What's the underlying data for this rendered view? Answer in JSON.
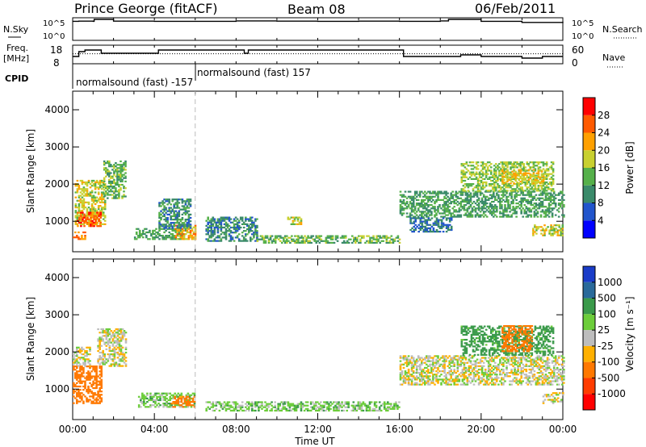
{
  "header": {
    "station": "Prince George (fitACF)",
    "beam": "Beam 08",
    "date": "06/Feb/2011"
  },
  "side_labels": {
    "nsky": "N.Sky",
    "freq": "Freq.",
    "freq_unit": "[MHz]",
    "cpid": "CPID",
    "nsearch": "N.Search",
    "nave": "Nave"
  },
  "cpid_labels": [
    "normalsound (fast) -157",
    "normalsound (fast) 157"
  ],
  "colors": {
    "power_scale": [
      "#0000ff",
      "#2255cc",
      "#3a8a6a",
      "#55b04a",
      "#c8d030",
      "#ffa000",
      "#ff5a00",
      "#ff0000"
    ],
    "velocity_scale": [
      "#1a3cc8",
      "#2a6a9a",
      "#3a9a4a",
      "#6ccd3a",
      "#bdbdbd",
      "#ffb000",
      "#ff7800",
      "#ff3c00",
      "#ff0000"
    ]
  },
  "chart_data": [
    {
      "type": "line",
      "name": "noise-panel",
      "y_left_ticks": [
        "10^5",
        "10^0"
      ],
      "y_right_ticks": [
        "10^5",
        "10^0"
      ],
      "series": [
        {
          "name": "N.Sky",
          "x": [
            0,
            0.3,
            1.0,
            1.05,
            2.0,
            4.0,
            6.0,
            8.0,
            10.0,
            12.0,
            14.0,
            16.0,
            18.0,
            18.4,
            20.0,
            22.0,
            24.0
          ],
          "y": [
            4.5,
            4.55,
            4.5,
            5.0,
            4.55,
            4.5,
            4.5,
            4.6,
            4.55,
            4.5,
            4.55,
            4.5,
            4.6,
            5.0,
            4.5,
            4.2,
            4.4
          ]
        }
      ]
    },
    {
      "type": "line",
      "name": "frequency-panel",
      "y_left_ticks": [
        "18",
        "8"
      ],
      "y_right_ticks": [
        "60",
        "0"
      ],
      "series": [
        {
          "name": "Freq.",
          "x": [
            0,
            0.3,
            0.6,
            1.1,
            1.4,
            2.0,
            3.5,
            4.2,
            5.0,
            6.0,
            7.0,
            8.0,
            8.4,
            8.6,
            9.0,
            10.0,
            12.0,
            14.0,
            16.0,
            16.2,
            18.0,
            19.0,
            20.0,
            21.0,
            22.0,
            23.0,
            24.0
          ],
          "y": [
            12,
            15,
            16,
            16,
            14,
            14,
            14,
            16,
            16,
            16,
            16,
            16,
            14,
            16,
            16,
            16,
            16,
            16,
            16,
            12,
            12,
            13,
            12,
            12,
            11,
            12,
            12
          ]
        },
        {
          "name": "Nave",
          "x": [
            0,
            24
          ],
          "y": [
            34,
            34
          ]
        }
      ]
    },
    {
      "type": "scatter",
      "name": "power-panel",
      "ylabel": "Slant Range [km]",
      "yticks": [
        1000,
        2000,
        3000,
        4000
      ],
      "ylim": [
        180,
        4500
      ],
      "xticks": [
        "00:00",
        "04:00",
        "08:00",
        "12:00",
        "16:00",
        "20:00",
        "00:00"
      ],
      "colorbar": {
        "label": "Power [dB]",
        "ticks": [
          4,
          8,
          12,
          16,
          20,
          24,
          28
        ],
        "range": [
          0,
          32
        ]
      },
      "clusters": [
        {
          "t": [
            0.1,
            1.6
          ],
          "r": [
            900,
            2100
          ],
          "p": 18
        },
        {
          "t": [
            0.2,
            1.4
          ],
          "r": [
            850,
            1250
          ],
          "p": 26
        },
        {
          "t": [
            0.0,
            0.6
          ],
          "r": [
            500,
            700
          ],
          "p": 24
        },
        {
          "t": [
            1.5,
            2.6
          ],
          "r": [
            1600,
            2600
          ],
          "p": 14
        },
        {
          "t": [
            3.0,
            5.5
          ],
          "r": [
            500,
            800
          ],
          "p": 12
        },
        {
          "t": [
            5.0,
            6.0
          ],
          "r": [
            500,
            900
          ],
          "p": 22
        },
        {
          "t": [
            4.2,
            5.8
          ],
          "r": [
            800,
            1600
          ],
          "p": 10
        },
        {
          "t": [
            6.5,
            9.0
          ],
          "r": [
            450,
            1100
          ],
          "p": 10
        },
        {
          "t": [
            9.0,
            16.0
          ],
          "r": [
            400,
            600
          ],
          "p": 14
        },
        {
          "t": [
            10.5,
            11.2
          ],
          "r": [
            900,
            1100
          ],
          "p": 18
        },
        {
          "t": [
            16.0,
            24.0
          ],
          "r": [
            1100,
            1800
          ],
          "p": 12
        },
        {
          "t": [
            19.0,
            23.5
          ],
          "r": [
            1800,
            2600
          ],
          "p": 16
        },
        {
          "t": [
            21.0,
            23.0
          ],
          "r": [
            2000,
            2400
          ],
          "p": 20
        },
        {
          "t": [
            22.5,
            24.0
          ],
          "r": [
            600,
            900
          ],
          "p": 18
        },
        {
          "t": [
            16.5,
            18.5
          ],
          "r": [
            700,
            1100
          ],
          "p": 8
        }
      ]
    },
    {
      "type": "scatter",
      "name": "velocity-panel",
      "ylabel": "Slant Range [km]",
      "yticks": [
        1000,
        2000,
        3000,
        4000
      ],
      "ylim": [
        180,
        4500
      ],
      "xticks": [
        "00:00",
        "04:00",
        "08:00",
        "12:00",
        "16:00",
        "20:00",
        "00:00"
      ],
      "xlabel": "Time UT",
      "colorbar": {
        "label": "Velocity [m s⁻¹]",
        "ticks": [
          "1000",
          "500",
          "100",
          "25",
          "-25",
          "-100",
          "-500",
          "-1000"
        ]
      },
      "clusters": [
        {
          "t": [
            0.0,
            1.4
          ],
          "r": [
            600,
            1600
          ],
          "v": -300
        },
        {
          "t": [
            0.0,
            0.8
          ],
          "r": [
            1600,
            2100
          ],
          "v": 0
        },
        {
          "t": [
            1.2,
            2.6
          ],
          "r": [
            1600,
            2600
          ],
          "v": 0
        },
        {
          "t": [
            3.2,
            6.0
          ],
          "r": [
            500,
            900
          ],
          "v": 60
        },
        {
          "t": [
            4.8,
            6.0
          ],
          "r": [
            500,
            800
          ],
          "v": -150
        },
        {
          "t": [
            6.5,
            16.0
          ],
          "r": [
            400,
            650
          ],
          "v": 60
        },
        {
          "t": [
            16.0,
            24.0
          ],
          "r": [
            1100,
            1900
          ],
          "v": 0
        },
        {
          "t": [
            19.0,
            23.5
          ],
          "r": [
            1900,
            2700
          ],
          "v": 150
        },
        {
          "t": [
            21.0,
            22.5
          ],
          "r": [
            2000,
            2700
          ],
          "v": -400
        },
        {
          "t": [
            23.0,
            24.0
          ],
          "r": [
            600,
            900
          ],
          "v": 0
        }
      ]
    }
  ],
  "x_axis": {
    "ticks": [
      "00:00",
      "04:00",
      "08:00",
      "12:00",
      "16:00",
      "20:00",
      "00:00"
    ],
    "label": "Time UT"
  }
}
